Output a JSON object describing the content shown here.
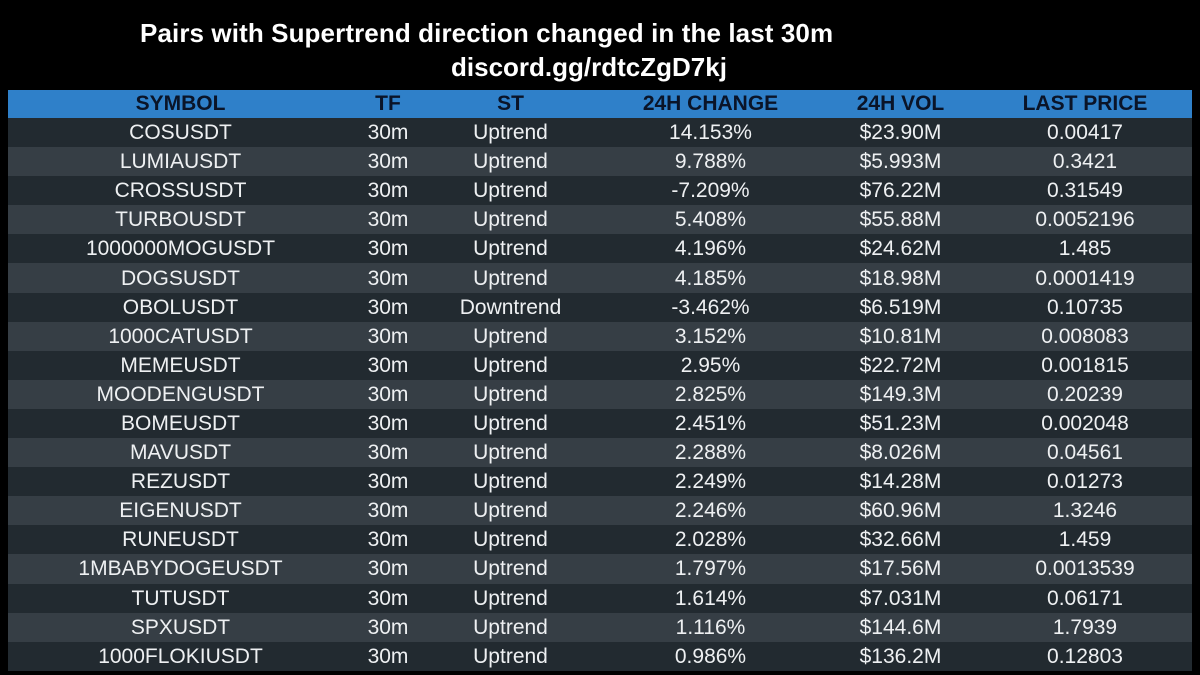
{
  "header": {
    "title": "Pairs with Supertrend direction changed in the last 30m",
    "subtitle": "discord.gg/rdtcZgD7kj"
  },
  "table": {
    "columns": [
      "SYMBOL",
      "TF",
      "ST",
      "24H CHANGE",
      "24H VOL",
      "LAST PRICE"
    ],
    "rows": [
      [
        "COSUSDT",
        "30m",
        "Uptrend",
        "14.153%",
        "$23.90M",
        "0.00417"
      ],
      [
        "LUMIAUSDT",
        "30m",
        "Uptrend",
        "9.788%",
        "$5.993M",
        "0.3421"
      ],
      [
        "CROSSUSDT",
        "30m",
        "Uptrend",
        "-7.209%",
        "$76.22M",
        "0.31549"
      ],
      [
        "TURBOUSDT",
        "30m",
        "Uptrend",
        "5.408%",
        "$55.88M",
        "0.0052196"
      ],
      [
        "1000000MOGUSDT",
        "30m",
        "Uptrend",
        "4.196%",
        "$24.62M",
        "1.485"
      ],
      [
        "DOGSUSDT",
        "30m",
        "Uptrend",
        "4.185%",
        "$18.98M",
        "0.0001419"
      ],
      [
        "OBOLUSDT",
        "30m",
        "Downtrend",
        "-3.462%",
        "$6.519M",
        "0.10735"
      ],
      [
        "1000CATUSDT",
        "30m",
        "Uptrend",
        "3.152%",
        "$10.81M",
        "0.008083"
      ],
      [
        "MEMEUSDT",
        "30m",
        "Uptrend",
        "2.95%",
        "$22.72M",
        "0.001815"
      ],
      [
        "MOODENGUSDT",
        "30m",
        "Uptrend",
        "2.825%",
        "$149.3M",
        "0.20239"
      ],
      [
        "BOMEUSDT",
        "30m",
        "Uptrend",
        "2.451%",
        "$51.23M",
        "0.002048"
      ],
      [
        "MAVUSDT",
        "30m",
        "Uptrend",
        "2.288%",
        "$8.026M",
        "0.04561"
      ],
      [
        "REZUSDT",
        "30m",
        "Uptrend",
        "2.249%",
        "$14.28M",
        "0.01273"
      ],
      [
        "EIGENUSDT",
        "30m",
        "Uptrend",
        "2.246%",
        "$60.96M",
        "1.3246"
      ],
      [
        "RUNEUSDT",
        "30m",
        "Uptrend",
        "2.028%",
        "$32.66M",
        "1.459"
      ],
      [
        "1MBABYDOGEUSDT",
        "30m",
        "Uptrend",
        "1.797%",
        "$17.56M",
        "0.0013539"
      ],
      [
        "TUTUSDT",
        "30m",
        "Uptrend",
        "1.614%",
        "$7.031M",
        "0.06171"
      ],
      [
        "SPXUSDT",
        "30m",
        "Uptrend",
        "1.116%",
        "$144.6M",
        "1.7939"
      ],
      [
        "1000FLOKIUSDT",
        "30m",
        "Uptrend",
        "0.986%",
        "$136.2M",
        "0.12803"
      ]
    ]
  },
  "colors": {
    "background": "#000000",
    "header_bar": "#2f80c9",
    "header_text": "#0a1428",
    "row_dark": "#222a30",
    "row_light": "#363e45",
    "cell_text": "#eef0f2"
  }
}
